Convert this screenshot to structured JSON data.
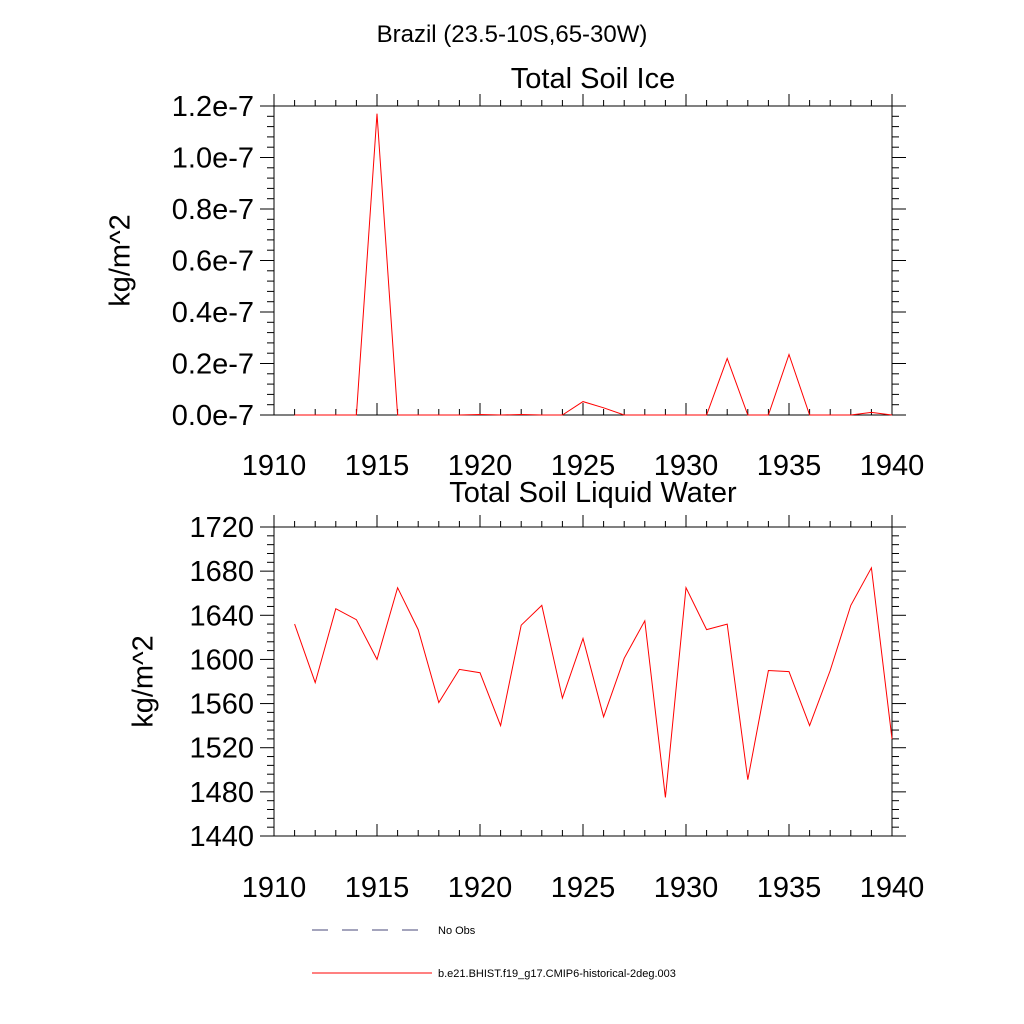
{
  "page": {
    "supertitle": "Brazil (23.5-10S,65-30W)"
  },
  "legend": {
    "entries": [
      {
        "label": "No Obs",
        "style": "dashed",
        "color": "#4a4a7a"
      },
      {
        "label": "b.e21.BHIST.f19_g17.CMIP6-historical-2deg.003",
        "style": "solid",
        "color": "#ff0000"
      }
    ]
  },
  "chart_data": [
    {
      "type": "line",
      "title": "Total Soil Ice",
      "xlabel": "",
      "ylabel": "kg/m^2",
      "xlim": [
        1910,
        1940
      ],
      "ylim": [
        0,
        1.2e-07
      ],
      "xticks": [
        1910,
        1915,
        1920,
        1925,
        1930,
        1935,
        1940
      ],
      "xtick_labels": [
        "1910",
        "1915",
        "1920",
        "1925",
        "1930",
        "1935",
        "1940"
      ],
      "yticks": [
        0,
        2e-08,
        4e-08,
        6e-08,
        8e-08,
        1e-07,
        1.2e-07
      ],
      "ytick_labels": [
        "0.0e-7",
        "0.2e-7",
        "0.4e-7",
        "0.6e-7",
        "0.8e-7",
        "1.0e-7",
        "1.2e-7"
      ],
      "grid": false,
      "series": [
        {
          "color": "#ff0000",
          "x": [
            1911,
            1912,
            1913,
            1914,
            1915,
            1916,
            1917,
            1918,
            1919,
            1920,
            1921,
            1922,
            1923,
            1924,
            1925,
            1926,
            1927,
            1928,
            1929,
            1930,
            1931,
            1932,
            1933,
            1934,
            1935,
            1936,
            1937,
            1938,
            1939,
            1940
          ],
          "values": [
            0,
            0,
            0,
            0,
            1.17e-07,
            0,
            0,
            0,
            0,
            2e-10,
            0,
            2e-10,
            0,
            0,
            5.2e-09,
            2.8e-09,
            0,
            0,
            0,
            0,
            0,
            2.2e-08,
            0,
            0,
            2.35e-08,
            0,
            0,
            0,
            1e-09,
            0
          ]
        }
      ]
    },
    {
      "type": "line",
      "title": "Total Soil Liquid Water",
      "xlabel": "",
      "ylabel": "kg/m^2",
      "xlim": [
        1910,
        1940
      ],
      "ylim": [
        1440,
        1720
      ],
      "xticks": [
        1910,
        1915,
        1920,
        1925,
        1930,
        1935,
        1940
      ],
      "xtick_labels": [
        "1910",
        "1915",
        "1920",
        "1925",
        "1930",
        "1935",
        "1940"
      ],
      "yticks": [
        1440,
        1480,
        1520,
        1560,
        1600,
        1640,
        1680,
        1720
      ],
      "ytick_labels": [
        "1440",
        "1480",
        "1520",
        "1560",
        "1600",
        "1640",
        "1680",
        "1720"
      ],
      "grid": false,
      "series": [
        {
          "color": "#ff0000",
          "x": [
            1911,
            1912,
            1913,
            1914,
            1915,
            1916,
            1917,
            1918,
            1919,
            1920,
            1921,
            1922,
            1923,
            1924,
            1925,
            1926,
            1927,
            1928,
            1929,
            1930,
            1931,
            1932,
            1933,
            1934,
            1935,
            1936,
            1937,
            1938,
            1939,
            1940
          ],
          "values": [
            1632,
            1579,
            1646,
            1636,
            1600,
            1665,
            1627,
            1561,
            1591,
            1588,
            1540,
            1631,
            1649,
            1565,
            1619,
            1548,
            1601,
            1635,
            1475,
            1665,
            1627,
            1632,
            1491,
            1590,
            1589,
            1540,
            1590,
            1649,
            1683,
            1528
          ]
        }
      ]
    }
  ]
}
